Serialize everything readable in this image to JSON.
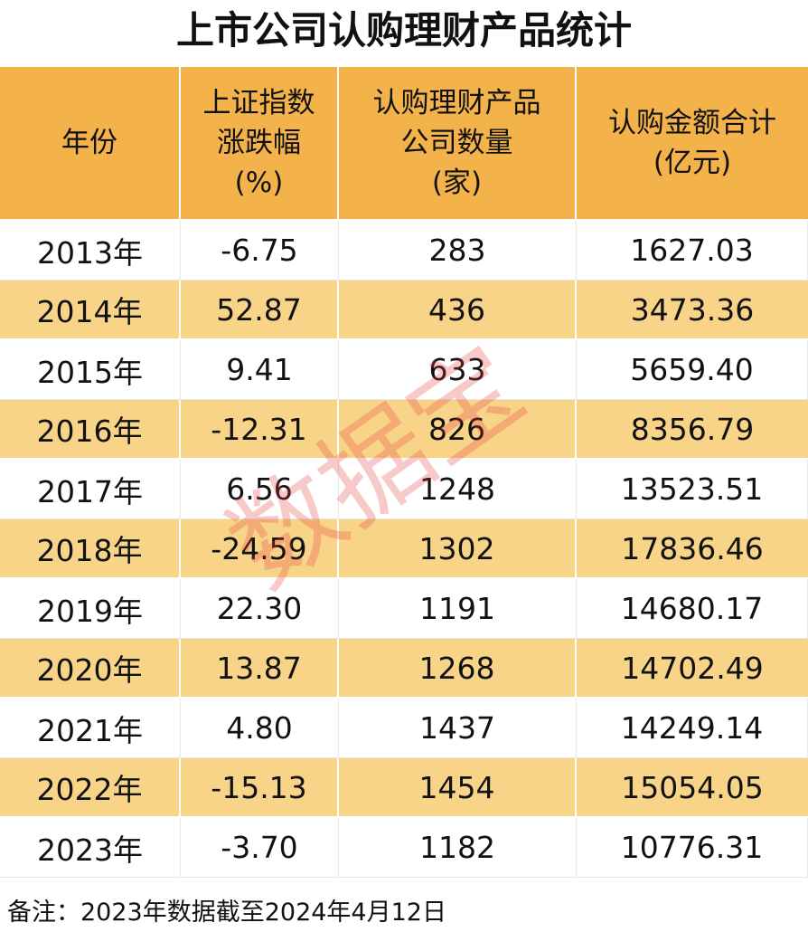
{
  "title": "上市公司认购理财产品统计",
  "table": {
    "header": [
      [
        "年份"
      ],
      [
        "上证指数",
        "涨跌幅",
        "(%)"
      ],
      [
        "认购理财产品",
        "公司数量",
        "(家)"
      ],
      [
        "认购金额合计",
        "(亿元)"
      ]
    ],
    "rows": [
      [
        "2013年",
        "-6.75",
        "283",
        "1627.03"
      ],
      [
        "2014年",
        "52.87",
        "436",
        "3473.36"
      ],
      [
        "2015年",
        "9.41",
        "633",
        "5659.40"
      ],
      [
        "2016年",
        "-12.31",
        "826",
        "8356.79"
      ],
      [
        "2017年",
        "6.56",
        "1248",
        "13523.51"
      ],
      [
        "2018年",
        "-24.59",
        "1302",
        "17836.46"
      ],
      [
        "2019年",
        "22.30",
        "1191",
        "14680.17"
      ],
      [
        "2020年",
        "13.87",
        "1268",
        "14702.49"
      ],
      [
        "2021年",
        "4.80",
        "1437",
        "14249.14"
      ],
      [
        "2022年",
        "-15.13",
        "1454",
        "15054.05"
      ],
      [
        "2023年",
        "-3.70",
        "1182",
        "10776.31"
      ]
    ]
  },
  "watermark": "数据宝",
  "footnote": "备注：2023年数据截至2024年4月12日"
}
